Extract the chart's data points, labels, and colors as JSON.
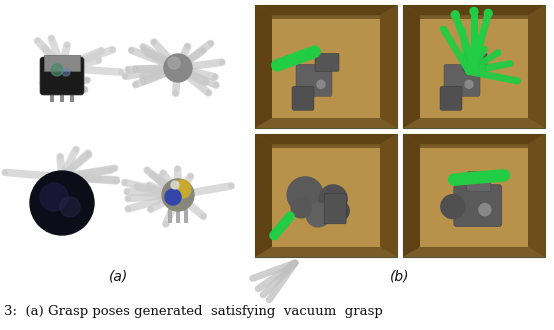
{
  "fig_width": 5.54,
  "fig_height": 3.3,
  "dpi": 100,
  "label_a": "(a)",
  "label_b": "(b)",
  "caption": "3:  (a) Grasp poses generated  satisfying  vacuum  grasp",
  "caption_fontsize": 9.5,
  "label_fontsize": 10,
  "bg_color": "#ffffff",
  "left_bg": "#f0f0f0",
  "right_outer_bg": "#7a5c28",
  "right_inner_floor": "#b8924a",
  "right_wall_dark": "#5a3e10",
  "right_wall_mid": "#8a6830",
  "gripper_green": "#22cc44",
  "stick_color": "#c8c8c8",
  "stick_dark": "#a8a8a8"
}
